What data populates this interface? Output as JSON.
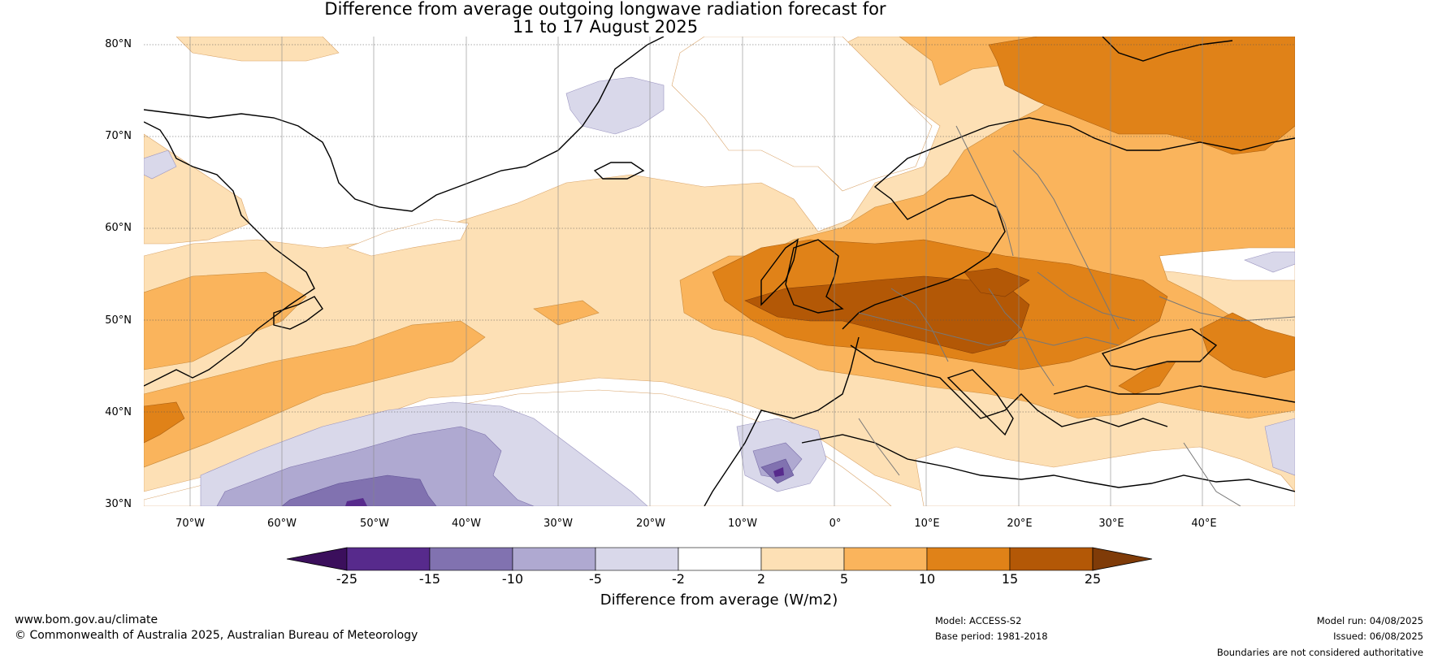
{
  "title_line1": "Difference from average outgoing longwave radiation forecast for",
  "title_line2": "11 to 17 August 2025",
  "map": {
    "latitude_labels": [
      "80°N",
      "70°N",
      "60°N",
      "50°N",
      "40°N",
      "30°N"
    ],
    "longitude_labels": [
      "70°W",
      "60°W",
      "50°W",
      "40°W",
      "30°W",
      "20°W",
      "10°W",
      "0°",
      "10°E",
      "20°E",
      "30°E",
      "40°E"
    ],
    "extent": {
      "lon_min": -75,
      "lon_max": 50,
      "lat_min": 30,
      "lat_max": 81
    },
    "grid": true
  },
  "colorbar": {
    "title": "Difference from average (W/m2)",
    "tick_labels": [
      "-25",
      "-15",
      "-10",
      "-5",
      "-2",
      "2",
      "5",
      "10",
      "15",
      "25"
    ],
    "colors": [
      "#3b0f5c",
      "#572a8c",
      "#8172b0",
      "#afa9d1",
      "#d9d8ea",
      "#ffffff",
      "#fde0b5",
      "#fab45c",
      "#e08218",
      "#b35806",
      "#7f3b08"
    ]
  },
  "footer": {
    "url": "www.bom.gov.au/climate",
    "copyright": "© Commonwealth of Australia 2025, Australian Bureau of Meteorology",
    "model": "Model: ACCESS-S2",
    "base_period": "Base period: 1981-2018",
    "model_run": "Model run: 04/08/2025",
    "issued": "Issued: 06/08/2025",
    "disclaimer": "Boundaries are not considered authoritative"
  }
}
